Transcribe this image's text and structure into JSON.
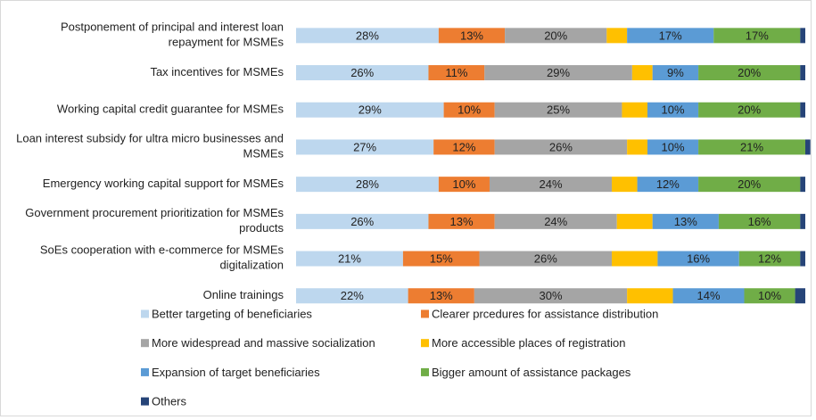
{
  "chart_data": {
    "type": "stacked-bar-horizontal",
    "categories": [
      "Postponement of principal and interest loan repayment for MSMEs",
      "Tax incentives for MSMEs",
      "Working capital credit guarantee for MSMEs",
      "Loan interest subsidy for ultra micro businesses and MSMEs",
      "Emergency working capital support for MSMEs",
      "Government procurement prioritization for MSMEs products",
      "SoEs cooperation with e-commerce for MSMEs digitalization",
      "Online trainings"
    ],
    "xlim": [
      0,
      100
    ],
    "series": [
      {
        "name": "Better targeting of beneficiaries",
        "color": "#bdd7ee",
        "values": [
          28,
          26,
          29,
          27,
          28,
          26,
          21,
          22
        ],
        "value_labels": [
          "28%",
          "26%",
          "29%",
          "27%",
          "28%",
          "26%",
          "21%",
          "22%"
        ]
      },
      {
        "name": "Clearer prcedures for assistance distribution",
        "color": "#ed7d31",
        "values": [
          13,
          11,
          10,
          12,
          10,
          13,
          15,
          13
        ],
        "value_labels": [
          "13%",
          "11%",
          "10%",
          "12%",
          "10%",
          "13%",
          "15%",
          "13%"
        ]
      },
      {
        "name": "More widespread and massive socialization",
        "color": "#a5a5a5",
        "values": [
          20,
          29,
          25,
          26,
          24,
          24,
          26,
          30
        ],
        "value_labels": [
          "20%",
          "29%",
          "25%",
          "26%",
          "24%",
          "24%",
          "26%",
          "30%"
        ]
      },
      {
        "name": "More accessible places of registration",
        "color": "#ffc000",
        "values": [
          4,
          4,
          5,
          4,
          5,
          7,
          9,
          9
        ]
      },
      {
        "name": "Expansion of target beneficiaries",
        "color": "#5b9bd5",
        "values": [
          17,
          9,
          10,
          10,
          12,
          13,
          16,
          14
        ],
        "value_labels": [
          "17%",
          "9%",
          "10%",
          "10%",
          "12%",
          "13%",
          "16%",
          "14%"
        ]
      },
      {
        "name": "Bigger amount of assistance packages",
        "color": "#70ad47",
        "values": [
          17,
          20,
          20,
          21,
          20,
          16,
          12,
          10
        ],
        "value_labels": [
          "17%",
          "20%",
          "20%",
          "21%",
          "20%",
          "16%",
          "12%",
          "10%"
        ]
      },
      {
        "name": "Others",
        "color": "#264478",
        "values": [
          1,
          1,
          1,
          1,
          1,
          1,
          1,
          2
        ]
      }
    ]
  }
}
